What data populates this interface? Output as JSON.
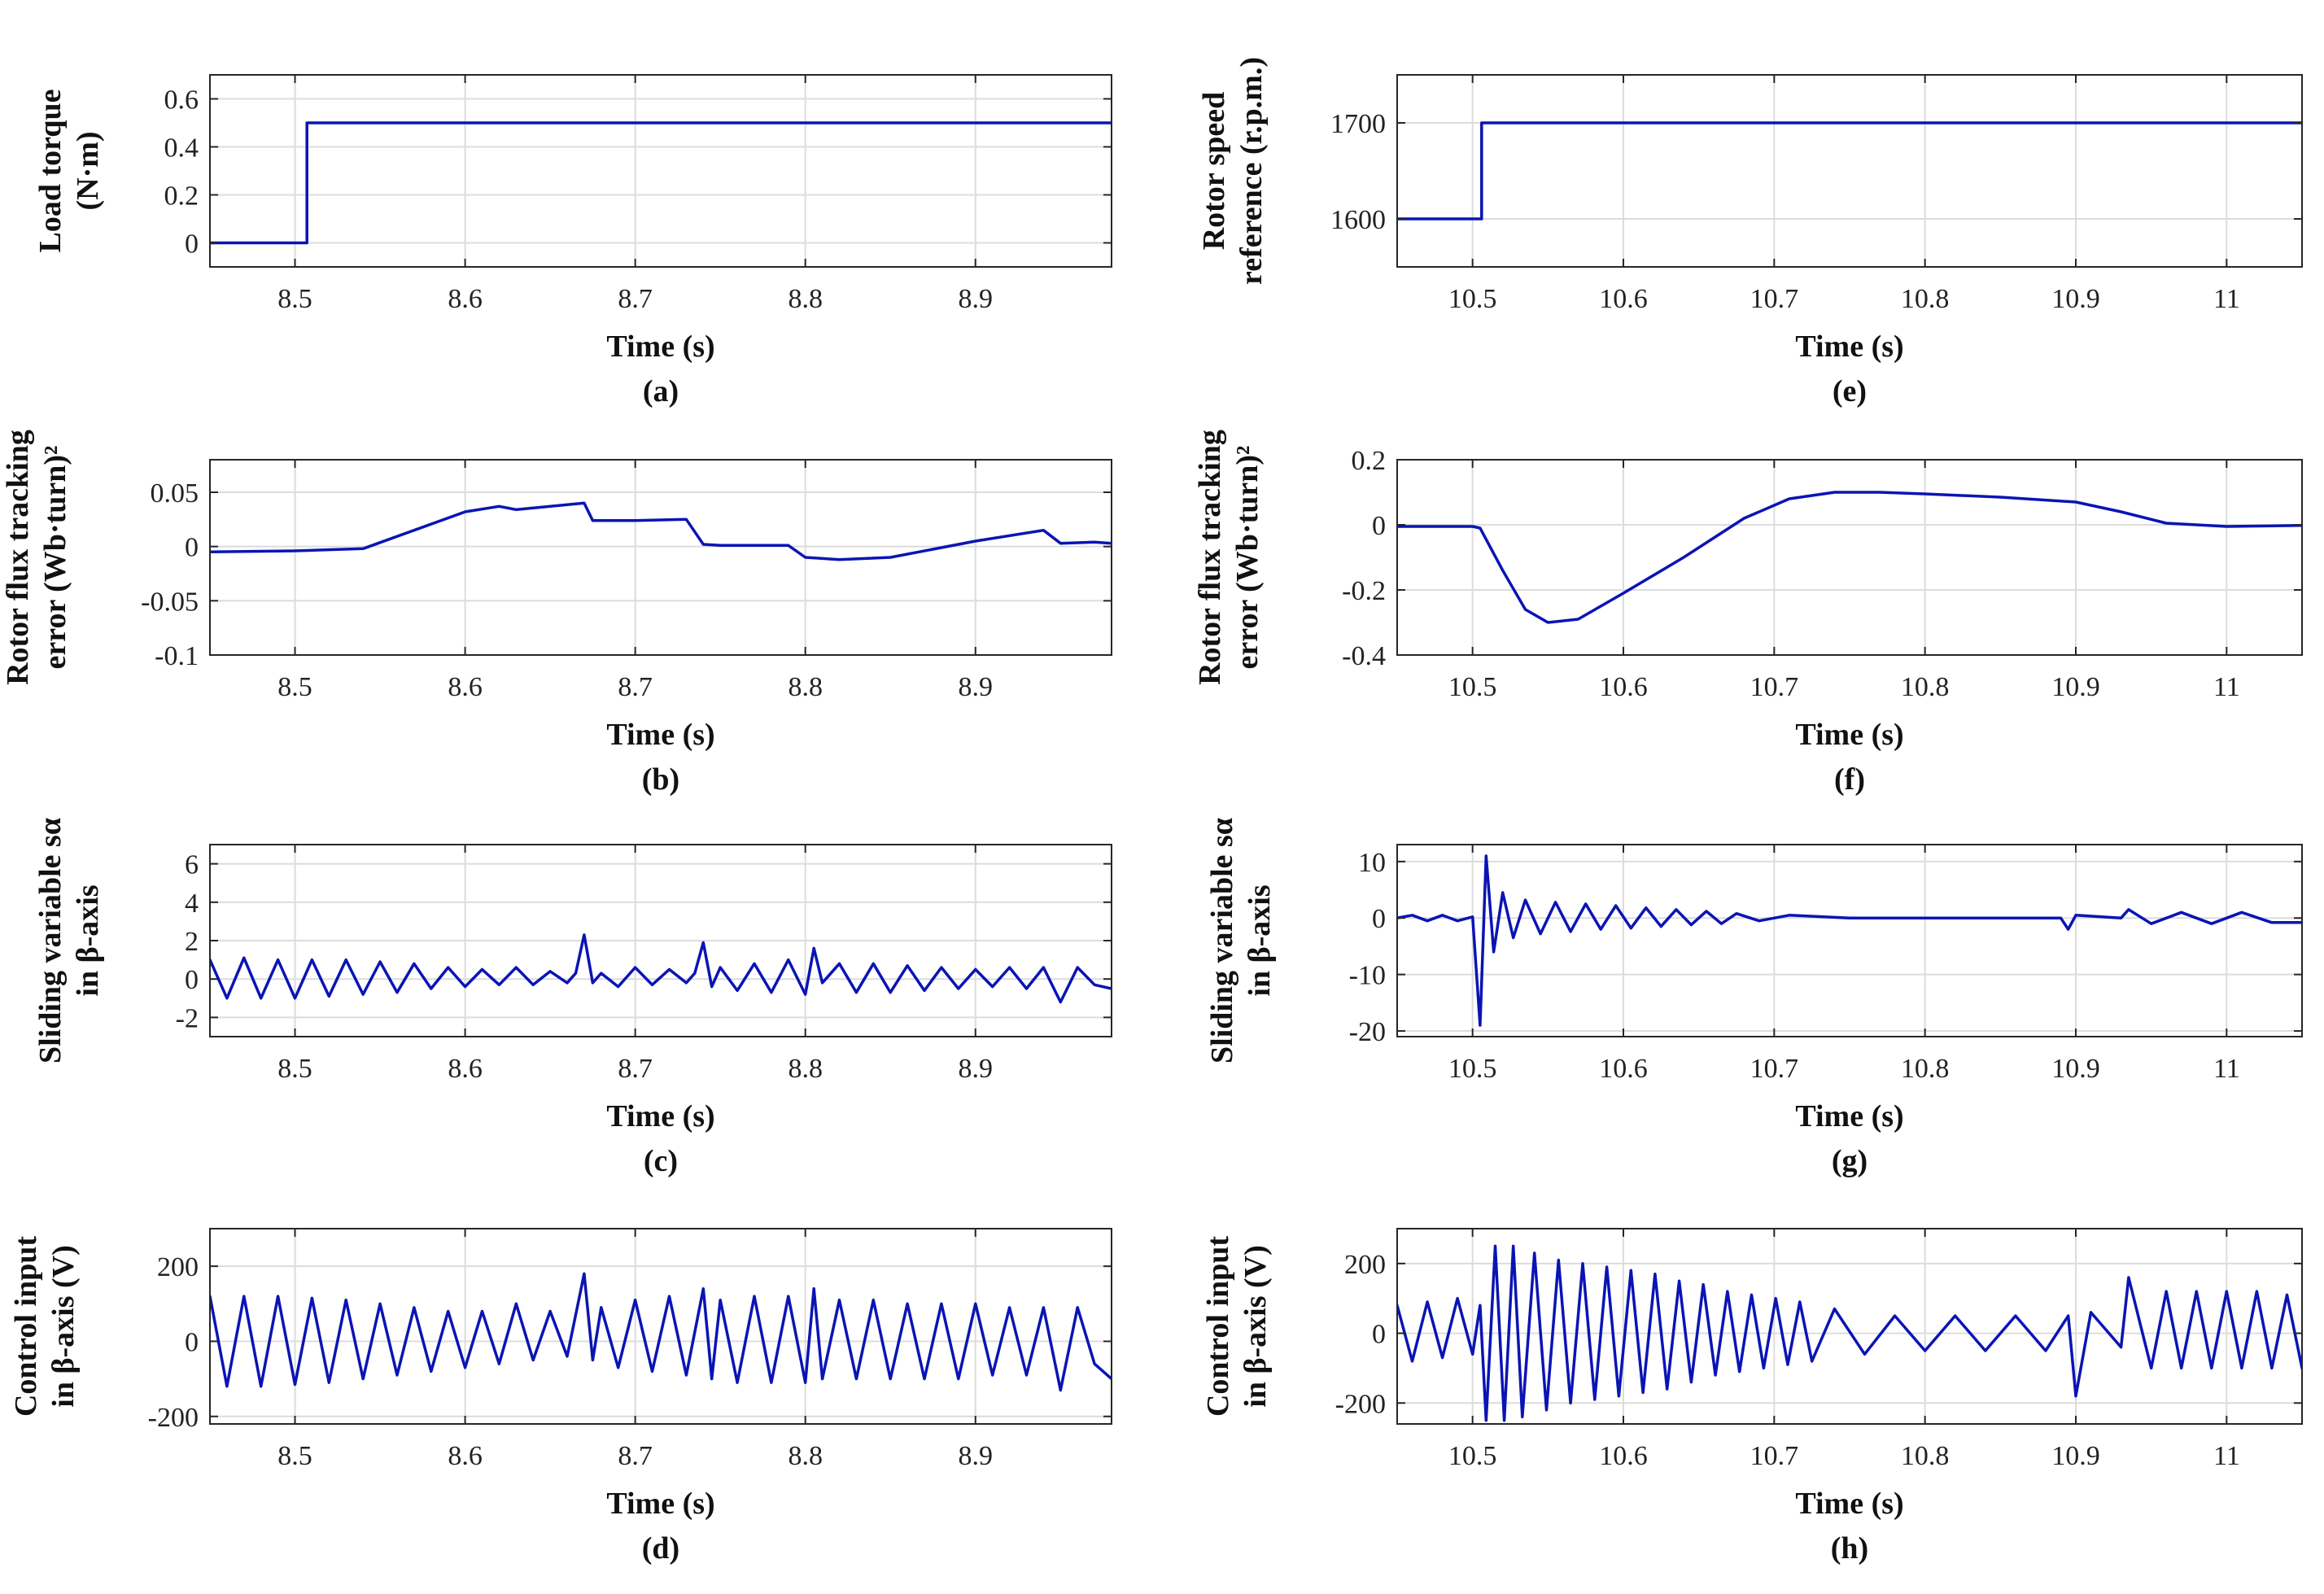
{
  "colors": {
    "line": "#0a14b4",
    "grid": "#dcdcdc",
    "axis": "#262626"
  },
  "chart_data": [
    {
      "id": "a",
      "type": "line",
      "panel_label": "(a)",
      "xlabel": "Time (s)",
      "ylabel_lines": [
        "Load torque",
        "(N·m)"
      ],
      "xlim": [
        8.45,
        8.98
      ],
      "ylim": [
        -0.1,
        0.7
      ],
      "xticks": [
        8.5,
        8.6,
        8.7,
        8.8,
        8.9
      ],
      "xtick_labels": [
        "8.5",
        "8.6",
        "8.7",
        "8.8",
        "8.9"
      ],
      "yticks": [
        0,
        0.2,
        0.4,
        0.6
      ],
      "ytick_labels": [
        "0",
        "0.2",
        "0.4",
        "0.6"
      ],
      "series": [
        {
          "name": "Load torque",
          "x": [
            8.45,
            8.507,
            8.507,
            8.98
          ],
          "y": [
            0,
            0,
            0.5,
            0.5
          ]
        }
      ]
    },
    {
      "id": "b",
      "type": "line",
      "panel_label": "(b)",
      "xlabel": "Time (s)",
      "ylabel_lines": [
        "Rotor flux tracking",
        "error (Wb·turn)²"
      ],
      "xlim": [
        8.45,
        8.98
      ],
      "ylim": [
        -0.1,
        0.08
      ],
      "xticks": [
        8.5,
        8.6,
        8.7,
        8.8,
        8.9
      ],
      "xtick_labels": [
        "8.5",
        "8.6",
        "8.7",
        "8.8",
        "8.9"
      ],
      "yticks": [
        -0.1,
        -0.05,
        0,
        0.05
      ],
      "ytick_labels": [
        "-0.1",
        "-0.05",
        "0",
        "0.05"
      ],
      "series": [
        {
          "name": "Flux error",
          "x": [
            8.45,
            8.5,
            8.54,
            8.57,
            8.6,
            8.62,
            8.63,
            8.67,
            8.675,
            8.7,
            8.73,
            8.74,
            8.75,
            8.79,
            8.8,
            8.82,
            8.85,
            8.9,
            8.94,
            8.95,
            8.97,
            8.98
          ],
          "y": [
            -0.005,
            -0.004,
            -0.002,
            0.015,
            0.032,
            0.037,
            0.034,
            0.04,
            0.024,
            0.024,
            0.025,
            0.002,
            0.001,
            0.001,
            -0.01,
            -0.012,
            -0.01,
            0.005,
            0.015,
            0.003,
            0.004,
            0.003
          ]
        }
      ]
    },
    {
      "id": "c",
      "type": "line",
      "panel_label": "(c)",
      "xlabel": "Time (s)",
      "ylabel_lines": [
        "Sliding variable sα",
        "in β-axis"
      ],
      "xlim": [
        8.45,
        8.98
      ],
      "ylim": [
        -3,
        7
      ],
      "xticks": [
        8.5,
        8.6,
        8.7,
        8.8,
        8.9
      ],
      "xtick_labels": [
        "8.5",
        "8.6",
        "8.7",
        "8.8",
        "8.9"
      ],
      "yticks": [
        -2,
        0,
        2,
        4,
        6
      ],
      "ytick_labels": [
        "-2",
        "0",
        "2",
        "4",
        "6"
      ],
      "series": [
        {
          "name": "s alpha",
          "x": [
            8.45,
            8.46,
            8.47,
            8.48,
            8.49,
            8.5,
            8.51,
            8.52,
            8.53,
            8.54,
            8.55,
            8.56,
            8.57,
            8.58,
            8.59,
            8.6,
            8.61,
            8.62,
            8.63,
            8.64,
            8.65,
            8.66,
            8.665,
            8.67,
            8.675,
            8.68,
            8.69,
            8.7,
            8.71,
            8.72,
            8.73,
            8.735,
            8.74,
            8.745,
            8.75,
            8.76,
            8.77,
            8.78,
            8.79,
            8.8,
            8.805,
            8.81,
            8.82,
            8.83,
            8.84,
            8.85,
            8.86,
            8.87,
            8.88,
            8.89,
            8.9,
            8.91,
            8.92,
            8.93,
            8.94,
            8.95,
            8.96,
            8.97,
            8.98
          ],
          "y": [
            1.0,
            -1.0,
            1.1,
            -1.0,
            1.0,
            -1.0,
            1.0,
            -0.9,
            1.0,
            -0.8,
            0.9,
            -0.7,
            0.8,
            -0.5,
            0.6,
            -0.4,
            0.5,
            -0.3,
            0.6,
            -0.3,
            0.4,
            -0.2,
            0.3,
            2.3,
            -0.2,
            0.3,
            -0.4,
            0.6,
            -0.3,
            0.5,
            -0.2,
            0.3,
            1.9,
            -0.4,
            0.6,
            -0.6,
            0.8,
            -0.7,
            1.0,
            -0.8,
            1.6,
            -0.2,
            0.8,
            -0.7,
            0.8,
            -0.7,
            0.7,
            -0.6,
            0.6,
            -0.5,
            0.5,
            -0.4,
            0.6,
            -0.5,
            0.6,
            -1.2,
            0.6,
            -0.3,
            -0.5
          ]
        }
      ]
    },
    {
      "id": "d",
      "type": "line",
      "panel_label": "(d)",
      "xlabel": "Time (s)",
      "ylabel_lines": [
        "Control input",
        "in β-axis (V)"
      ],
      "xlim": [
        8.45,
        8.98
      ],
      "ylim": [
        -220,
        300
      ],
      "xticks": [
        8.5,
        8.6,
        8.7,
        8.8,
        8.9
      ],
      "xtick_labels": [
        "8.5",
        "8.6",
        "8.7",
        "8.8",
        "8.9"
      ],
      "yticks": [
        -200,
        0,
        200
      ],
      "ytick_labels": [
        "-200",
        "0",
        "200"
      ],
      "series": [
        {
          "name": "Control input",
          "x": [
            8.45,
            8.46,
            8.47,
            8.48,
            8.49,
            8.5,
            8.51,
            8.52,
            8.53,
            8.54,
            8.55,
            8.56,
            8.57,
            8.58,
            8.59,
            8.6,
            8.61,
            8.62,
            8.63,
            8.64,
            8.65,
            8.66,
            8.67,
            8.675,
            8.68,
            8.69,
            8.7,
            8.71,
            8.72,
            8.73,
            8.74,
            8.745,
            8.75,
            8.76,
            8.77,
            8.78,
            8.79,
            8.8,
            8.805,
            8.81,
            8.82,
            8.83,
            8.84,
            8.85,
            8.86,
            8.87,
            8.88,
            8.89,
            8.9,
            8.91,
            8.92,
            8.93,
            8.94,
            8.95,
            8.96,
            8.97,
            8.98
          ],
          "y": [
            120,
            -120,
            120,
            -120,
            120,
            -115,
            115,
            -110,
            110,
            -100,
            100,
            -90,
            90,
            -80,
            80,
            -70,
            80,
            -60,
            100,
            -50,
            80,
            -40,
            180,
            -50,
            90,
            -70,
            110,
            -80,
            120,
            -90,
            140,
            -100,
            110,
            -110,
            120,
            -110,
            120,
            -110,
            140,
            -100,
            110,
            -100,
            110,
            -100,
            100,
            -100,
            100,
            -100,
            100,
            -90,
            90,
            -90,
            90,
            -130,
            90,
            -60,
            -100
          ]
        }
      ]
    },
    {
      "id": "e",
      "type": "line",
      "panel_label": "(e)",
      "xlabel": "Time (s)",
      "ylabel_lines": [
        "Rotor speed",
        "reference (r.p.m.)"
      ],
      "xlim": [
        10.45,
        11.05
      ],
      "ylim": [
        1550,
        1750
      ],
      "xticks": [
        10.5,
        10.6,
        10.7,
        10.8,
        10.9,
        11.0
      ],
      "xtick_labels": [
        "10.5",
        "10.6",
        "10.7",
        "10.8",
        "10.9",
        "11"
      ],
      "yticks": [
        1600,
        1700
      ],
      "ytick_labels": [
        "1600",
        "1700"
      ],
      "series": [
        {
          "name": "Speed reference",
          "x": [
            10.45,
            10.506,
            10.506,
            11.05
          ],
          "y": [
            1600,
            1600,
            1700,
            1700
          ]
        }
      ]
    },
    {
      "id": "f",
      "type": "line",
      "panel_label": "(f)",
      "xlabel": "Time (s)",
      "ylabel_lines": [
        "Rotor flux tracking",
        "error (Wb·turn)²"
      ],
      "xlim": [
        10.45,
        11.05
      ],
      "ylim": [
        -0.4,
        0.2
      ],
      "xticks": [
        10.5,
        10.6,
        10.7,
        10.8,
        10.9,
        11.0
      ],
      "xtick_labels": [
        "10.5",
        "10.6",
        "10.7",
        "10.8",
        "10.9",
        "11"
      ],
      "yticks": [
        -0.4,
        -0.2,
        0,
        0.2
      ],
      "ytick_labels": [
        "-0.4",
        "-0.2",
        "0",
        "0.2"
      ],
      "series": [
        {
          "name": "Flux error",
          "x": [
            10.45,
            10.5,
            10.505,
            10.52,
            10.535,
            10.55,
            10.57,
            10.6,
            10.64,
            10.68,
            10.71,
            10.74,
            10.77,
            10.8,
            10.85,
            10.9,
            10.93,
            10.96,
            11.0,
            11.05
          ],
          "y": [
            -0.005,
            -0.005,
            -0.01,
            -0.14,
            -0.26,
            -0.3,
            -0.29,
            -0.21,
            -0.1,
            0.02,
            0.08,
            0.1,
            0.1,
            0.095,
            0.085,
            0.07,
            0.04,
            0.005,
            -0.005,
            -0.002
          ]
        }
      ]
    },
    {
      "id": "g",
      "type": "line",
      "panel_label": "(g)",
      "xlabel": "Time (s)",
      "ylabel_lines": [
        "Sliding variable sα",
        "in β-axis"
      ],
      "xlim": [
        10.45,
        11.05
      ],
      "ylim": [
        -21,
        13
      ],
      "xticks": [
        10.5,
        10.6,
        10.7,
        10.8,
        10.9,
        11.0
      ],
      "xtick_labels": [
        "10.5",
        "10.6",
        "10.7",
        "10.8",
        "10.9",
        "11"
      ],
      "yticks": [
        -20,
        -10,
        0,
        10
      ],
      "ytick_labels": [
        "-20",
        "-10",
        "0",
        "10"
      ],
      "series": [
        {
          "name": "s alpha",
          "x": [
            10.45,
            10.46,
            10.47,
            10.48,
            10.49,
            10.5,
            10.505,
            10.509,
            10.514,
            10.52,
            10.527,
            10.535,
            10.545,
            10.555,
            10.565,
            10.575,
            10.585,
            10.595,
            10.605,
            10.615,
            10.625,
            10.635,
            10.645,
            10.655,
            10.665,
            10.675,
            10.69,
            10.71,
            10.75,
            10.8,
            10.85,
            10.89,
            10.895,
            10.9,
            10.93,
            10.935,
            10.95,
            10.97,
            10.99,
            11.01,
            11.03,
            11.05
          ],
          "y": [
            0,
            0.5,
            -0.5,
            0.5,
            -0.5,
            0.2,
            -19,
            11,
            -6,
            4.5,
            -3.5,
            3.2,
            -2.8,
            2.8,
            -2.4,
            2.5,
            -2.0,
            2.2,
            -1.8,
            1.8,
            -1.5,
            1.5,
            -1.2,
            1.2,
            -1.0,
            0.8,
            -0.5,
            0.5,
            0,
            0,
            0,
            0,
            -2,
            0.5,
            0,
            1.5,
            -1.0,
            1.0,
            -1.0,
            1.0,
            -0.8,
            -0.8
          ]
        }
      ]
    },
    {
      "id": "h",
      "type": "line",
      "panel_label": "(h)",
      "xlabel": "Time (s)",
      "ylabel_lines": [
        "Control input",
        "in β-axis (V)"
      ],
      "xlim": [
        10.45,
        11.05
      ],
      "ylim": [
        -260,
        300
      ],
      "xticks": [
        10.5,
        10.6,
        10.7,
        10.8,
        10.9,
        11.0
      ],
      "xtick_labels": [
        "10.5",
        "10.6",
        "10.7",
        "10.8",
        "10.9",
        "11"
      ],
      "yticks": [
        -200,
        0,
        200
      ],
      "ytick_labels": [
        "-200",
        "0",
        "200"
      ],
      "series": [
        {
          "name": "Control input",
          "x": [
            10.45,
            10.46,
            10.47,
            10.48,
            10.49,
            10.5,
            10.505,
            10.509,
            10.515,
            10.521,
            10.527,
            10.533,
            10.541,
            10.549,
            10.557,
            10.565,
            10.573,
            10.581,
            10.589,
            10.597,
            10.605,
            10.613,
            10.621,
            10.629,
            10.637,
            10.645,
            10.653,
            10.661,
            10.669,
            10.677,
            10.685,
            10.693,
            10.701,
            10.709,
            10.717,
            10.725,
            10.74,
            10.76,
            10.78,
            10.8,
            10.82,
            10.84,
            10.86,
            10.88,
            10.895,
            10.9,
            10.91,
            10.93,
            10.935,
            10.95,
            10.96,
            10.97,
            10.98,
            10.99,
            11.0,
            11.01,
            11.02,
            11.03,
            11.04,
            11.05
          ],
          "y": [
            80,
            -80,
            90,
            -70,
            100,
            -60,
            80,
            -250,
            250,
            -250,
            250,
            -240,
            230,
            -220,
            210,
            -200,
            200,
            -190,
            190,
            -180,
            180,
            -170,
            170,
            -160,
            150,
            -140,
            140,
            -120,
            120,
            -110,
            110,
            -100,
            100,
            -90,
            90,
            -80,
            70,
            -60,
            50,
            -50,
            50,
            -50,
            50,
            -50,
            50,
            -180,
            60,
            -40,
            160,
            -100,
            120,
            -100,
            120,
            -100,
            120,
            -100,
            120,
            -100,
            110,
            -100
          ]
        }
      ]
    }
  ]
}
